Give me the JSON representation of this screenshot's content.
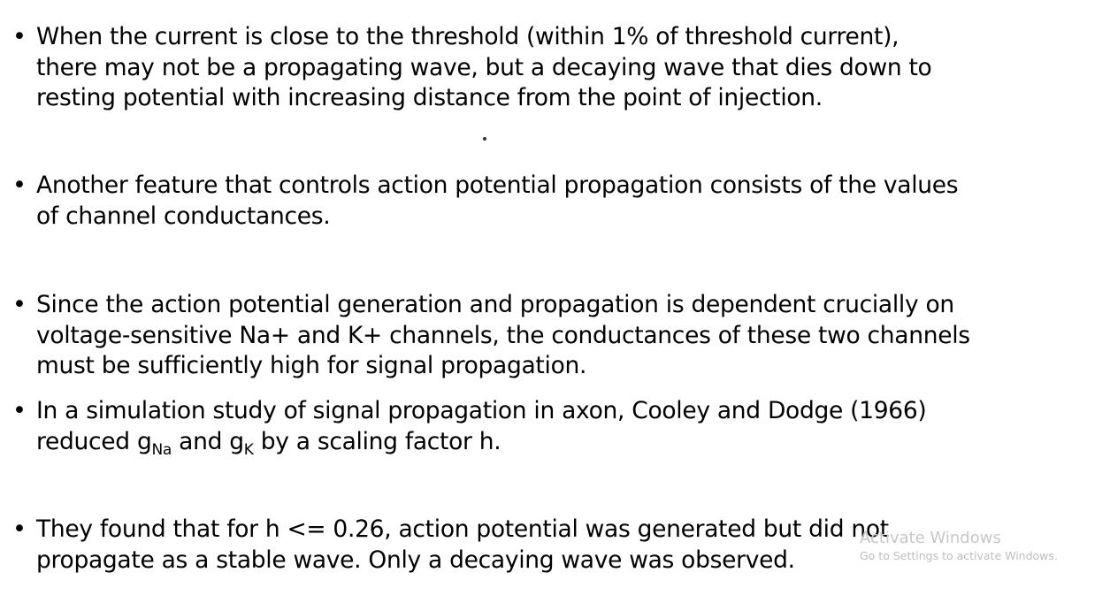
{
  "bullets": [
    {
      "lines": [
        "When the current is close to the threshold (within 1% of threshold current),",
        "there may not be a propagating wave, but a decaying wave that dies down to",
        "resting potential with increasing distance from the point of injection."
      ]
    },
    {
      "lines": [
        "Another feature that controls action potential propagation consists of the values",
        "of channel conductances."
      ]
    },
    {
      "lines": [
        "Since the action potential generation and propagation is dependent crucially on",
        "voltage-sensitive Na+ and K+ channels, the conductances of these two channels",
        "must be sufficiently high for signal propagation."
      ]
    },
    {
      "line1": "In a simulation study of signal propagation in axon, Cooley and Dodge (1966)",
      "line2_parts": {
        "pre": "reduced g",
        "sub1": "Na",
        "mid": " and g",
        "sub2": "K",
        "post": " by a scaling factor h."
      }
    },
    {
      "lines": [
        "They found that for h <= 0.26, action potential was generated but did not",
        "propagate as a stable wave. Only a decaying wave was observed."
      ]
    }
  ],
  "bullet_symbol": "•",
  "watermark": {
    "title": "Activate Windows",
    "subtitle": "Go to Settings to activate Windows."
  }
}
